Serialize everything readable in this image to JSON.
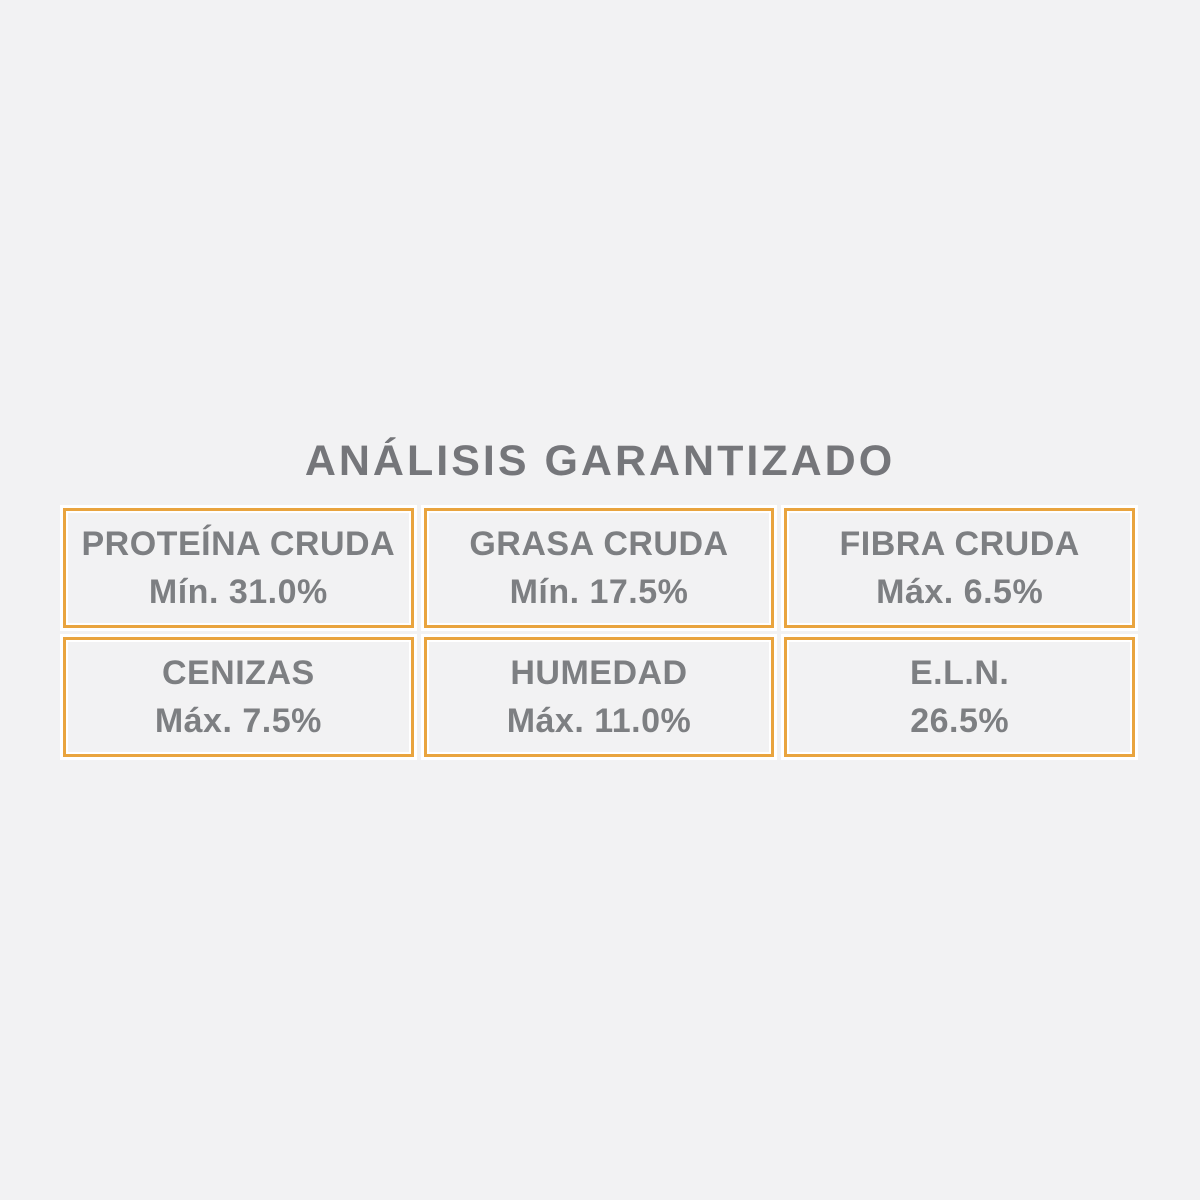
{
  "title": "ANÁLISIS GARANTIZADO",
  "colors": {
    "page_bg": "#F2F2F3",
    "box_border": "#E9A43E",
    "box_halo": "#FFFFFF",
    "title_text": "#75767A",
    "cell_text": "#7D7F82"
  },
  "analysis": {
    "cells": [
      {
        "label": "PROTEÍNA CRUDA",
        "value": "Mín. 31.0%"
      },
      {
        "label": "GRASA CRUDA",
        "value": "Mín. 17.5%"
      },
      {
        "label": "FIBRA CRUDA",
        "value": "Máx. 6.5%"
      },
      {
        "label": "CENIZAS",
        "value": "Máx. 7.5%"
      },
      {
        "label": "HUMEDAD",
        "value": "Máx. 11.0%"
      },
      {
        "label": "E.L.N.",
        "value": "26.5%"
      }
    ]
  }
}
